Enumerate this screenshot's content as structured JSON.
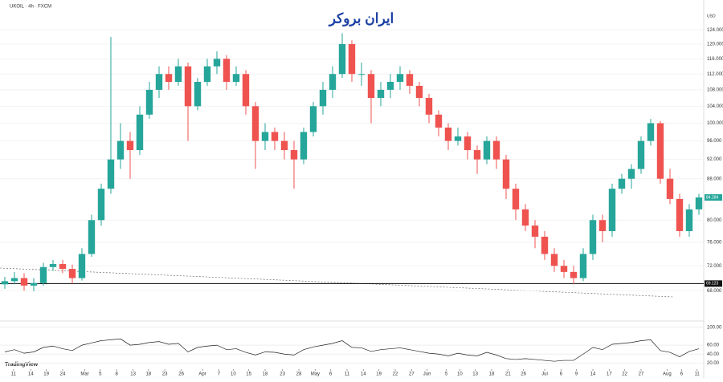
{
  "header": {
    "symbol": "UKOIL · 4h · FXCM",
    "logo": "ایران بروکر",
    "currency": "USD",
    "brand": "TradingView"
  },
  "chart_data": [
    {
      "type": "candlestick",
      "log_scale": true,
      "up_color": "#26a69a",
      "down_color": "#ef5350",
      "open": [
        69.0,
        69.5,
        70,
        68.8,
        69.2,
        71.8,
        72.3,
        71.5,
        70,
        74,
        80,
        86,
        92,
        96,
        94,
        102,
        108,
        112,
        110,
        114,
        104,
        110,
        114,
        116,
        110,
        112,
        104,
        96,
        98,
        96,
        94,
        92,
        98,
        104,
        108,
        112,
        120,
        112,
        112,
        106,
        108,
        110,
        112,
        109,
        106,
        102,
        99,
        96,
        97,
        94,
        92,
        96,
        92,
        86,
        82,
        79,
        77,
        74,
        72,
        71,
        70,
        74,
        80,
        78,
        86,
        88,
        90,
        96,
        100,
        88,
        84,
        78,
        82
      ],
      "high": [
        70.2,
        71,
        70.8,
        70,
        72.5,
        73,
        73,
        72.2,
        75,
        81,
        87,
        122,
        100,
        98,
        104,
        110,
        114,
        114,
        116,
        115,
        111,
        116,
        118,
        117,
        114,
        113,
        105,
        100,
        99,
        98,
        96,
        99,
        105,
        110,
        114,
        123,
        121,
        115,
        113,
        110,
        112,
        114,
        113,
        110,
        107,
        103,
        100,
        99,
        98,
        95,
        97,
        97,
        93,
        87,
        83,
        80,
        78,
        75,
        73,
        72,
        75,
        81,
        81,
        87,
        89,
        91,
        97,
        101,
        100.5,
        90,
        85,
        83,
        85
      ],
      "low": [
        68.3,
        69,
        68,
        67.9,
        68.8,
        71.2,
        70.8,
        69.1,
        69.6,
        73.5,
        79,
        85,
        90,
        88,
        93,
        101,
        106,
        108,
        109,
        96,
        103,
        109,
        112,
        108,
        109,
        102,
        90,
        94,
        94,
        92,
        86,
        91,
        97,
        102,
        106,
        111,
        110,
        109,
        100,
        104,
        106,
        108,
        107,
        104,
        100,
        97,
        94,
        95,
        92,
        89,
        91,
        90,
        84,
        80,
        78,
        75,
        73,
        71,
        70,
        69,
        69.5,
        73,
        76,
        77,
        85,
        86,
        89,
        95,
        87,
        83,
        77,
        77,
        81
      ],
      "close": [
        69.5,
        70,
        68.8,
        69.2,
        71.8,
        72.3,
        71.5,
        70,
        74,
        80,
        86,
        92,
        96,
        94,
        102,
        108,
        112,
        110,
        114,
        104,
        110,
        114,
        116,
        110,
        112,
        104,
        96,
        98,
        96,
        94,
        92,
        98,
        104,
        108,
        112,
        120,
        112,
        112,
        106,
        108,
        110,
        112,
        109,
        106,
        102,
        99,
        96,
        97,
        94,
        92,
        96,
        92,
        86,
        82,
        79,
        77,
        74,
        72,
        71,
        70,
        74,
        80,
        78,
        86,
        88,
        90,
        96,
        100,
        88,
        84,
        78,
        82,
        84.284
      ],
      "price_line": 69.123,
      "ylim": [
        64,
        128
      ],
      "yticks": [
        {
          "value": 124,
          "label": "124.000"
        },
        {
          "value": 120,
          "label": "120.000"
        },
        {
          "value": 116,
          "label": "116.000"
        },
        {
          "value": 112,
          "label": "112.000"
        },
        {
          "value": 108,
          "label": "108.000"
        },
        {
          "value": 104,
          "label": "104.000"
        },
        {
          "value": 100,
          "label": "100.000"
        },
        {
          "value": 96,
          "label": "96.000"
        },
        {
          "value": 92,
          "label": "92.000"
        },
        {
          "value": 88,
          "label": "88.000"
        },
        {
          "value": 80,
          "label": "80.000"
        },
        {
          "value": 76,
          "label": "76.000"
        },
        {
          "value": 72,
          "label": "72.000"
        },
        {
          "value": 68,
          "label": "68.000"
        }
      ],
      "xlim": [
        -0.5,
        72.5
      ],
      "xticks": [
        {
          "value": 0.9,
          "label": "11"
        },
        {
          "value": 2.7,
          "label": "14"
        },
        {
          "value": 4.3,
          "label": "19"
        },
        {
          "value": 6,
          "label": "24"
        },
        {
          "value": 8.3,
          "label": "Mar"
        },
        {
          "value": 9.9,
          "label": "5"
        },
        {
          "value": 11.6,
          "label": "8"
        },
        {
          "value": 13.3,
          "label": "13"
        },
        {
          "value": 14.9,
          "label": "18"
        },
        {
          "value": 16.6,
          "label": "23"
        },
        {
          "value": 18.3,
          "label": "26"
        },
        {
          "value": 20.5,
          "label": "Apr"
        },
        {
          "value": 22.2,
          "label": "7"
        },
        {
          "value": 23.7,
          "label": "10"
        },
        {
          "value": 25.3,
          "label": "15"
        },
        {
          "value": 27,
          "label": "18"
        },
        {
          "value": 28.8,
          "label": "23"
        },
        {
          "value": 30.5,
          "label": "28"
        },
        {
          "value": 32.2,
          "label": "May"
        },
        {
          "value": 33.8,
          "label": "6"
        },
        {
          "value": 35.5,
          "label": "11"
        },
        {
          "value": 37.2,
          "label": "14"
        },
        {
          "value": 38.8,
          "label": "19"
        },
        {
          "value": 40.5,
          "label": "22"
        },
        {
          "value": 42.2,
          "label": "27"
        },
        {
          "value": 43.8,
          "label": "Jun"
        },
        {
          "value": 45.8,
          "label": "5"
        },
        {
          "value": 47.2,
          "label": "10"
        },
        {
          "value": 48.8,
          "label": "13"
        },
        {
          "value": 50.5,
          "label": "18"
        },
        {
          "value": 52.2,
          "label": "21"
        },
        {
          "value": 53.8,
          "label": "26"
        },
        {
          "value": 56,
          "label": "Jul"
        },
        {
          "value": 57.7,
          "label": "6"
        },
        {
          "value": 59.3,
          "label": "9"
        },
        {
          "value": 61,
          "label": "14"
        },
        {
          "value": 62.7,
          "label": "17"
        },
        {
          "value": 64.3,
          "label": "22"
        },
        {
          "value": 66,
          "label": "27"
        },
        {
          "value": 68.7,
          "label": "Aug"
        },
        {
          "value": 70.2,
          "label": "6"
        },
        {
          "value": 71.8,
          "label": "11"
        }
      ]
    },
    {
      "type": "line",
      "color": "#222222",
      "values": [
        45,
        50,
        42,
        45,
        55,
        58,
        52,
        48,
        60,
        65,
        70,
        72,
        74,
        60,
        62,
        66,
        68,
        62,
        64,
        45,
        55,
        58,
        60,
        50,
        52,
        44,
        38,
        45,
        44,
        40,
        38,
        50,
        56,
        60,
        64,
        70,
        55,
        54,
        46,
        50,
        52,
        54,
        50,
        46,
        42,
        40,
        36,
        42,
        38,
        36,
        44,
        38,
        30,
        28,
        30,
        28,
        26,
        24,
        26,
        26,
        40,
        55,
        50,
        62,
        64,
        66,
        70,
        72,
        48,
        44,
        34,
        46,
        52
      ],
      "ylim": [
        10,
        105
      ],
      "yticks": [
        {
          "value": 100,
          "label": "100.00"
        },
        {
          "value": 60,
          "label": "60.00"
        },
        {
          "value": 40,
          "label": "40.00"
        },
        {
          "value": 20,
          "label": "20.00"
        }
      ]
    }
  ]
}
